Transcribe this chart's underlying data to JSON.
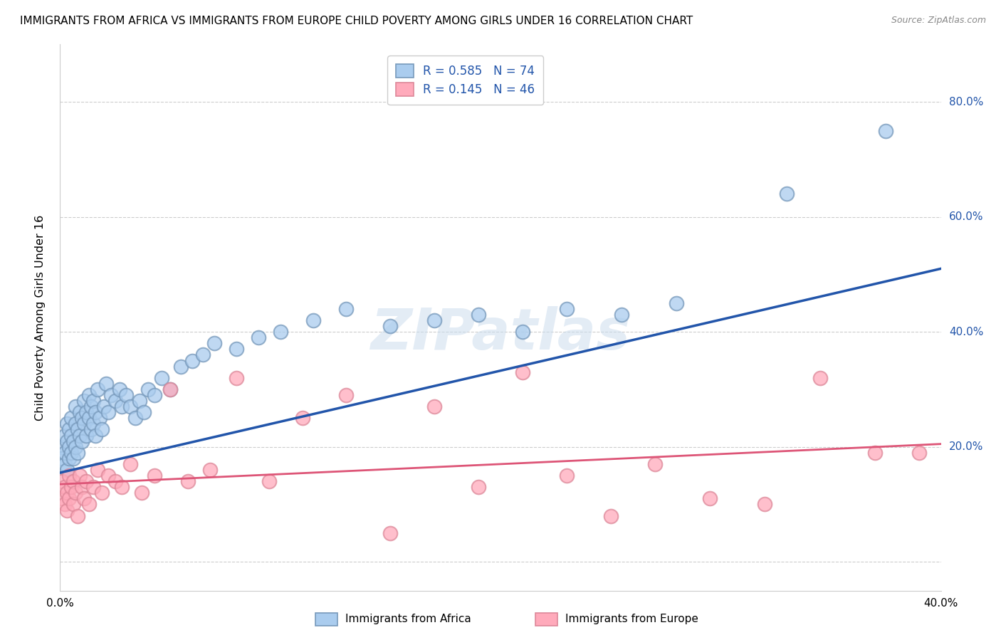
{
  "title": "IMMIGRANTS FROM AFRICA VS IMMIGRANTS FROM EUROPE CHILD POVERTY AMONG GIRLS UNDER 16 CORRELATION CHART",
  "source": "Source: ZipAtlas.com",
  "ylabel": "Child Poverty Among Girls Under 16",
  "xlim": [
    0.0,
    0.4
  ],
  "ylim": [
    -0.05,
    0.9
  ],
  "yticks": [
    0.0,
    0.2,
    0.4,
    0.6,
    0.8
  ],
  "ytick_labels": [
    "",
    "20.0%",
    "40.0%",
    "60.0%",
    "80.0%"
  ],
  "xticks": [
    0.0,
    0.1,
    0.2,
    0.3,
    0.4
  ],
  "xtick_labels": [
    "0.0%",
    "",
    "",
    "",
    "40.0%"
  ],
  "africa_color_fill": "#AACCEE",
  "africa_color_edge": "#7799BB",
  "europe_color_fill": "#FFAABB",
  "europe_color_edge": "#DD8899",
  "line_africa_color": "#2255AA",
  "line_europe_color": "#DD5577",
  "R_africa": 0.585,
  "N_africa": 74,
  "R_europe": 0.145,
  "N_europe": 46,
  "watermark": "ZIPatlas",
  "legend_africa": "Immigrants from Africa",
  "legend_europe": "Immigrants from Europe",
  "africa_x": [
    0.001,
    0.001,
    0.002,
    0.002,
    0.002,
    0.003,
    0.003,
    0.003,
    0.004,
    0.004,
    0.004,
    0.005,
    0.005,
    0.005,
    0.006,
    0.006,
    0.007,
    0.007,
    0.007,
    0.008,
    0.008,
    0.009,
    0.009,
    0.01,
    0.01,
    0.011,
    0.011,
    0.012,
    0.012,
    0.013,
    0.013,
    0.014,
    0.014,
    0.015,
    0.015,
    0.016,
    0.016,
    0.017,
    0.018,
    0.019,
    0.02,
    0.021,
    0.022,
    0.023,
    0.025,
    0.027,
    0.028,
    0.03,
    0.032,
    0.034,
    0.036,
    0.038,
    0.04,
    0.043,
    0.046,
    0.05,
    0.055,
    0.06,
    0.065,
    0.07,
    0.08,
    0.09,
    0.1,
    0.115,
    0.13,
    0.15,
    0.17,
    0.19,
    0.21,
    0.23,
    0.255,
    0.28,
    0.33,
    0.375
  ],
  "africa_y": [
    0.2,
    0.18,
    0.17,
    0.22,
    0.19,
    0.16,
    0.21,
    0.24,
    0.18,
    0.2,
    0.23,
    0.19,
    0.22,
    0.25,
    0.18,
    0.21,
    0.2,
    0.24,
    0.27,
    0.19,
    0.23,
    0.22,
    0.26,
    0.21,
    0.25,
    0.24,
    0.28,
    0.22,
    0.26,
    0.25,
    0.29,
    0.23,
    0.27,
    0.24,
    0.28,
    0.22,
    0.26,
    0.3,
    0.25,
    0.23,
    0.27,
    0.31,
    0.26,
    0.29,
    0.28,
    0.3,
    0.27,
    0.29,
    0.27,
    0.25,
    0.28,
    0.26,
    0.3,
    0.29,
    0.32,
    0.3,
    0.34,
    0.35,
    0.36,
    0.38,
    0.37,
    0.39,
    0.4,
    0.42,
    0.44,
    0.41,
    0.42,
    0.43,
    0.4,
    0.44,
    0.43,
    0.45,
    0.64,
    0.75
  ],
  "europe_x": [
    0.001,
    0.001,
    0.002,
    0.002,
    0.003,
    0.003,
    0.004,
    0.004,
    0.005,
    0.006,
    0.006,
    0.007,
    0.008,
    0.009,
    0.01,
    0.011,
    0.012,
    0.013,
    0.015,
    0.017,
    0.019,
    0.022,
    0.025,
    0.028,
    0.032,
    0.037,
    0.043,
    0.05,
    0.058,
    0.068,
    0.08,
    0.095,
    0.11,
    0.13,
    0.15,
    0.17,
    0.19,
    0.21,
    0.23,
    0.25,
    0.27,
    0.295,
    0.32,
    0.345,
    0.37,
    0.39
  ],
  "europe_y": [
    0.14,
    0.11,
    0.13,
    0.1,
    0.12,
    0.09,
    0.15,
    0.11,
    0.13,
    0.1,
    0.14,
    0.12,
    0.08,
    0.15,
    0.13,
    0.11,
    0.14,
    0.1,
    0.13,
    0.16,
    0.12,
    0.15,
    0.14,
    0.13,
    0.17,
    0.12,
    0.15,
    0.3,
    0.14,
    0.16,
    0.32,
    0.14,
    0.25,
    0.29,
    0.05,
    0.27,
    0.13,
    0.33,
    0.15,
    0.08,
    0.17,
    0.11,
    0.1,
    0.32,
    0.19,
    0.19
  ],
  "line_africa_x0": 0.0,
  "line_africa_x1": 0.4,
  "line_africa_y0": 0.155,
  "line_africa_y1": 0.51,
  "line_europe_x0": 0.0,
  "line_europe_x1": 0.4,
  "line_europe_y0": 0.135,
  "line_europe_y1": 0.205
}
